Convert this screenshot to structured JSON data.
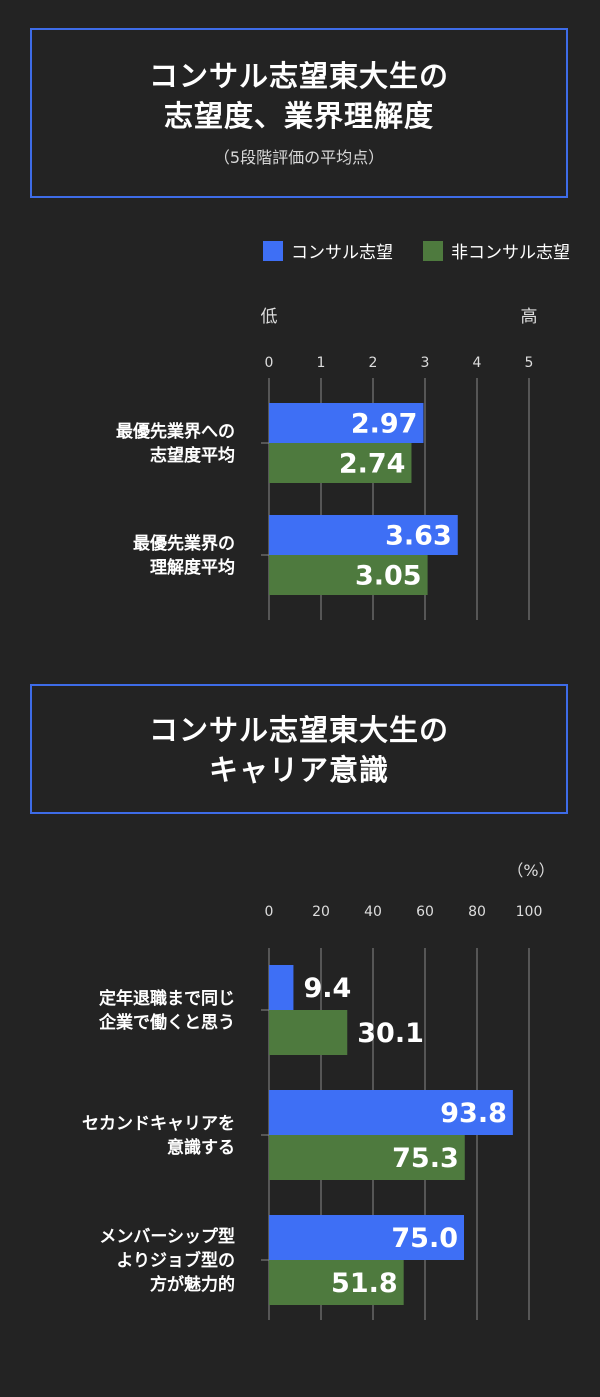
{
  "header1": {
    "line1": "コンサル志望東大生の",
    "line2": "志望度、業界理解度",
    "subtitle": "（5段階評価の平均点）"
  },
  "header2": {
    "line1": "コンサル志望東大生の",
    "line2": "キャリア意識"
  },
  "legend": [
    {
      "label": "コンサル志望",
      "color": "#3e6ff5"
    },
    {
      "label": "非コンサル志望",
      "color": "#4e7a3e"
    }
  ],
  "chart_data": [
    {
      "type": "bar",
      "orientation": "horizontal",
      "scale_low_label": "低",
      "scale_high_label": "高",
      "xlim": [
        0,
        5
      ],
      "ticks": [
        "0",
        "1",
        "2",
        "3",
        "4",
        "5"
      ],
      "categories": [
        [
          "最優先業界への",
          "志望度平均"
        ],
        [
          "最優先業界の",
          "理解度平均"
        ]
      ],
      "series": [
        {
          "name": "コンサル志望",
          "values": [
            2.97,
            3.63
          ],
          "labels": [
            "2.97",
            "3.63"
          ]
        },
        {
          "name": "非コンサル志望",
          "values": [
            2.74,
            3.05
          ],
          "labels": [
            "2.74",
            "3.05"
          ]
        }
      ],
      "grid": true
    },
    {
      "type": "bar",
      "orientation": "horizontal",
      "unit_label": "（%）",
      "xlim": [
        0,
        100
      ],
      "ticks": [
        "0",
        "20",
        "40",
        "60",
        "80",
        "100"
      ],
      "categories": [
        [
          "定年退職まで同じ",
          "企業で働くと思う"
        ],
        [
          "セカンドキャリアを",
          "意識する"
        ],
        [
          "メンバーシップ型",
          "よりジョブ型の",
          "方が魅力的"
        ]
      ],
      "series": [
        {
          "name": "コンサル志望",
          "values": [
            9.4,
            93.8,
            75.0
          ],
          "labels": [
            "9.4",
            "93.8",
            "75.0"
          ]
        },
        {
          "name": "非コンサル志望",
          "values": [
            30.1,
            75.3,
            51.8
          ],
          "labels": [
            "30.1",
            "75.3",
            "51.8"
          ]
        }
      ],
      "grid": true
    }
  ]
}
